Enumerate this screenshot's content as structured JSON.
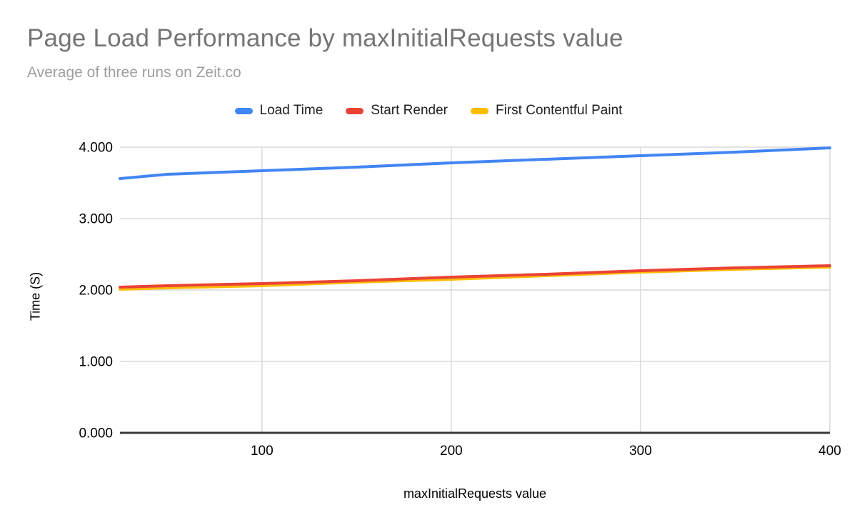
{
  "chart_data": {
    "type": "line",
    "title": "Page Load Performance by maxInitialRequests value",
    "subtitle": "Average of three runs on Zeit.co",
    "xlabel": "maxInitialRequests value",
    "ylabel": "Time (S)",
    "legend_position": "top",
    "grid": true,
    "xlim": [
      25,
      400
    ],
    "ylim": [
      0,
      4
    ],
    "x_ticks": [
      {
        "value": 100,
        "label": "100"
      },
      {
        "value": 200,
        "label": "200"
      },
      {
        "value": 300,
        "label": "300"
      },
      {
        "value": 400,
        "label": "400"
      }
    ],
    "y_ticks": [
      {
        "value": 0,
        "label": "0.000"
      },
      {
        "value": 1,
        "label": "1.000"
      },
      {
        "value": 2,
        "label": "2.000"
      },
      {
        "value": 3,
        "label": "3.000"
      },
      {
        "value": 4,
        "label": "4.000"
      }
    ],
    "x": [
      25,
      50,
      100,
      150,
      200,
      250,
      300,
      350,
      400
    ],
    "series": [
      {
        "name": "Load Time",
        "color": "#4285F4",
        "values": [
          3.56,
          3.62,
          3.67,
          3.72,
          3.78,
          3.83,
          3.88,
          3.93,
          3.99
        ]
      },
      {
        "name": "Start Render",
        "color": "#EA4335",
        "values": [
          2.04,
          2.06,
          2.09,
          2.13,
          2.18,
          2.22,
          2.27,
          2.31,
          2.34
        ]
      },
      {
        "name": "First Contentful Paint",
        "color": "#FBBC04",
        "values": [
          2.01,
          2.03,
          2.06,
          2.11,
          2.15,
          2.2,
          2.25,
          2.29,
          2.32
        ]
      }
    ]
  },
  "colors": {
    "background": "#ffffff",
    "title_text": "#757575",
    "subtitle_text": "#9e9e9e",
    "legend_text": "#212121",
    "tick_text": "#000000",
    "gridline": "#d9d9d9",
    "axis_line": "#3b3b3b"
  }
}
